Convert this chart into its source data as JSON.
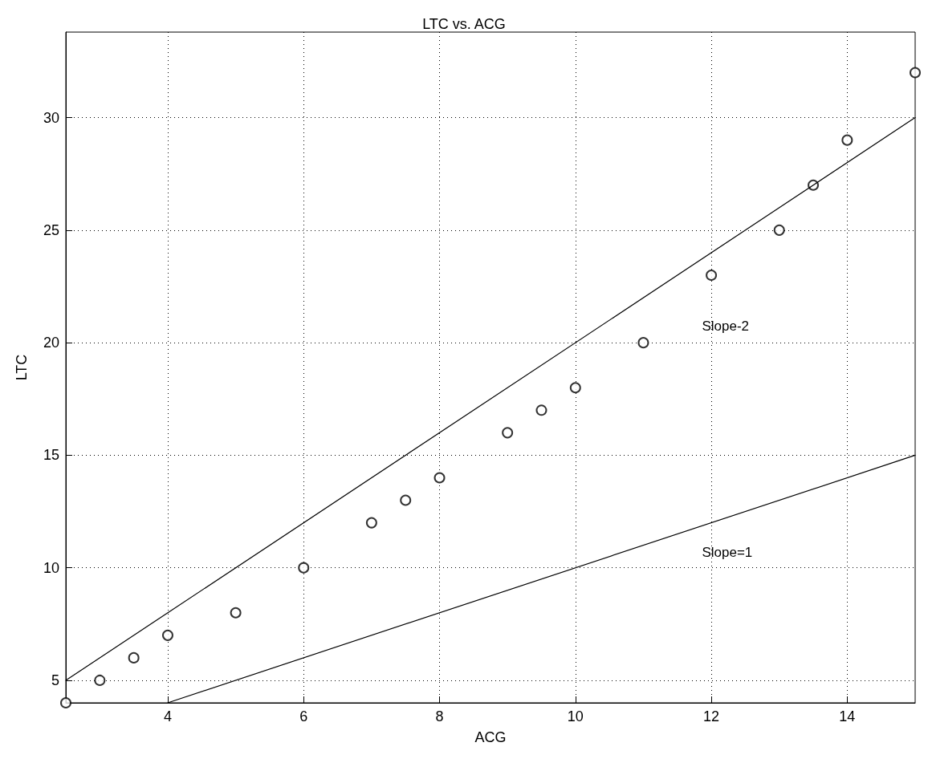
{
  "chart_data": {
    "type": "scatter",
    "title": "LTC vs. ACG",
    "xlabel": "ACG",
    "ylabel": "LTC",
    "xlim": [
      2.5,
      15
    ],
    "xticks": [
      4,
      6,
      8,
      10,
      12,
      14
    ],
    "ylim": [
      4,
      33.8
    ],
    "yticks": [
      5,
      10,
      15,
      20,
      25,
      30
    ],
    "grid": true,
    "marker": "circle",
    "series": [
      {
        "color": "#000000",
        "x": [
          2.5,
          3,
          3.5,
          4,
          5,
          6,
          7,
          7.5,
          8,
          9,
          9.5,
          10,
          11,
          12,
          13,
          13.5,
          14,
          15
        ],
        "values": [
          4,
          5,
          6,
          7,
          8,
          10,
          12,
          13,
          14,
          16,
          17,
          18,
          20,
          23,
          25,
          27,
          29,
          32
        ]
      },
      {
        "type": "line",
        "color": "#000000",
        "marker": "none",
        "line_style": "solid",
        "x": [
          2.5,
          15
        ],
        "values": [
          5,
          30
        ]
      },
      {
        "type": "line",
        "color": "#000000",
        "marker": "none",
        "line_style": "solid",
        "x": [
          4,
          15
        ],
        "values": [
          4,
          15
        ]
      }
    ],
    "annotations": [
      "Slope-2",
      "Slope=1"
    ]
  }
}
